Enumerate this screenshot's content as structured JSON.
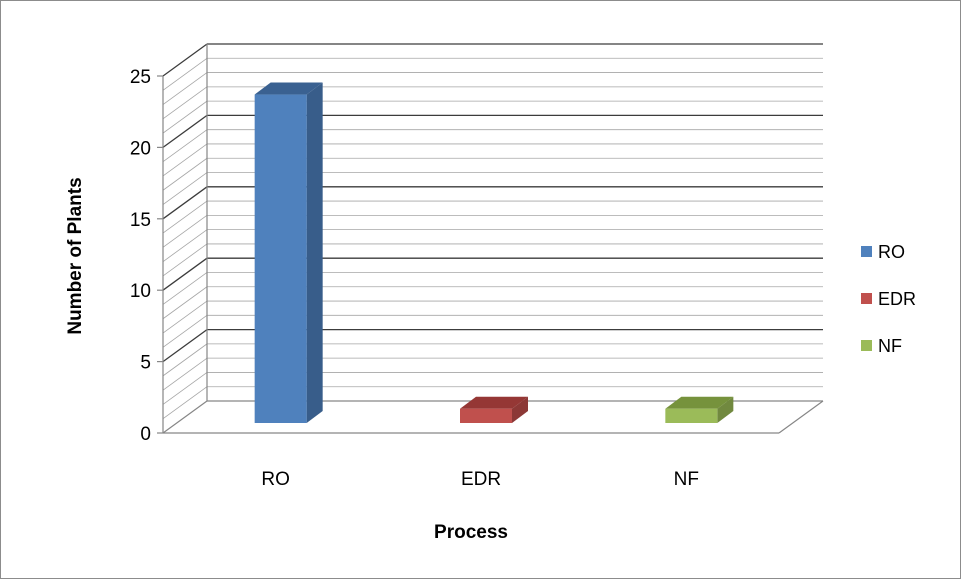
{
  "chart_data": {
    "type": "bar",
    "style": "3d-column",
    "categories": [
      "RO",
      "EDR",
      "NF"
    ],
    "series": [
      {
        "name": "RO",
        "values": [
          23,
          0,
          0
        ]
      },
      {
        "name": "EDR",
        "values": [
          0,
          1,
          0
        ]
      },
      {
        "name": "NF",
        "values": [
          0,
          0,
          1
        ]
      }
    ],
    "values": [
      23,
      1,
      1
    ],
    "title": "",
    "xlabel": "Process",
    "ylabel": "Number of Plants",
    "ylim": [
      0,
      25
    ],
    "yticks": [
      0,
      5,
      10,
      15,
      20,
      25
    ],
    "grid": "major and minor horizontal gridlines on the back wall",
    "legend": "right",
    "colors": {
      "RO": {
        "front": "#4f81bd",
        "side": "#385d8a",
        "top": "#3a6191"
      },
      "EDR": {
        "front": "#c0504d",
        "side": "#8c3836",
        "top": "#953735"
      },
      "NF": {
        "front": "#9bbb59",
        "side": "#71893f",
        "top": "#76923c"
      },
      "axis": "#868686",
      "gridline": "#3c3c3c"
    }
  }
}
